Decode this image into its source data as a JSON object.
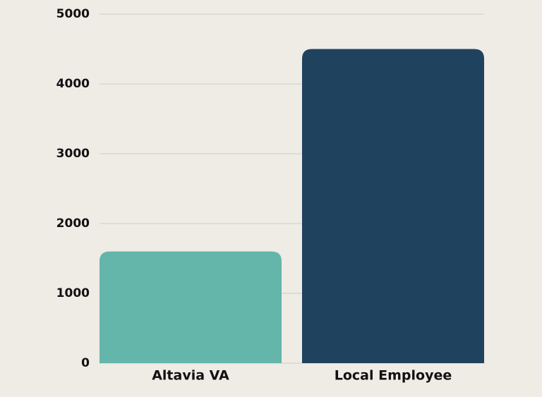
{
  "chart_data": {
    "type": "bar",
    "categories": [
      "Altavia VA",
      "Local Employee"
    ],
    "values": [
      1600,
      4500
    ],
    "colors": [
      "#64b5aa",
      "#1f425e"
    ],
    "ylim": [
      0,
      5000
    ],
    "yticks": [
      0,
      1000,
      2000,
      3000,
      4000,
      5000
    ],
    "grid": true
  }
}
